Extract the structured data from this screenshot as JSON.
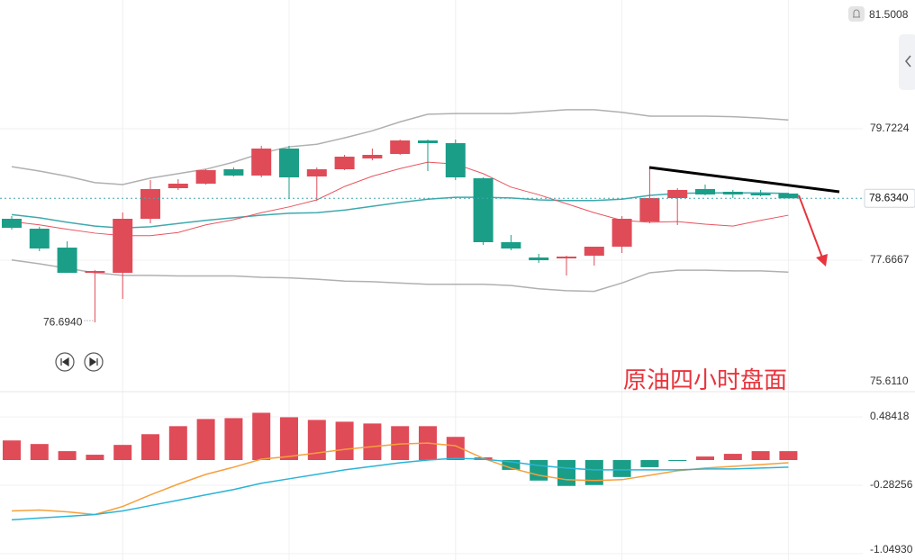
{
  "chart_data": [
    {
      "type": "candlestick",
      "open": [
        78.3143,
        78.1594,
        77.8637,
        77.4695,
        77.4695,
        78.3143,
        78.7931,
        78.8635,
        79.0887,
        78.9902,
        79.4126,
        78.9761,
        79.0887,
        79.2577,
        79.3281,
        79.5394,
        79.4971,
        78.9479,
        77.9482,
        77.7088,
        77.6947,
        77.737,
        77.8778,
        78.2721,
        78.6382,
        78.779,
        78.7368,
        78.7086,
        78.7086
      ],
      "high": [
        78.3566,
        78.19,
        77.9623,
        77.5117,
        78.4129,
        78.9198,
        78.9339,
        79.0887,
        79.1169,
        79.4549,
        79.4549,
        79.1169,
        79.314,
        79.4126,
        79.5534,
        79.5534,
        79.5534,
        78.962,
        78.0609,
        77.7652,
        77.737,
        77.8778,
        78.3566,
        79.1169,
        78.7931,
        78.8494,
        78.7649,
        78.7649,
        78.72
      ],
      "low": [
        78.1453,
        77.8074,
        77.4695,
        76.694,
        77.0612,
        78.2439,
        78.7649,
        78.8494,
        78.9761,
        78.962,
        78.6241,
        78.5959,
        79.0747,
        79.2295,
        79.314,
        79.0606,
        78.9198,
        77.906,
        77.8215,
        77.6244,
        77.4273,
        77.5821,
        77.7792,
        78.2439,
        78.2157,
        78.6804,
        78.6382,
        78.6664,
        78.634
      ],
      "close": [
        78.1735,
        77.8496,
        77.4695,
        77.4976,
        78.3143,
        78.779,
        78.8635,
        79.0747,
        78.9902,
        79.4126,
        78.962,
        79.0887,
        79.2859,
        79.314,
        79.5394,
        79.4971,
        78.962,
        77.9482,
        77.8496,
        77.6666,
        77.7229,
        77.8778,
        78.3143,
        78.6382,
        78.7649,
        78.6945,
        78.6945,
        78.6804,
        78.634
      ],
      "up_color": "#e04b58",
      "down_color": "#1b9e88",
      "overlays": [
        {
          "color": "#b0b0b0",
          "values": [
            79.13,
            79.06,
            78.98,
            78.88,
            78.85,
            78.95,
            79.02,
            79.09,
            79.2,
            79.34,
            79.44,
            79.48,
            79.58,
            79.69,
            79.83,
            79.95,
            79.96,
            79.96,
            79.96,
            79.99,
            80.02,
            80.02,
            79.98,
            79.92,
            79.92,
            79.92,
            79.91,
            79.89,
            79.86
          ]
        },
        {
          "color": "#3fa9ad",
          "values": [
            78.38,
            78.33,
            78.26,
            78.2,
            78.17,
            78.19,
            78.24,
            78.29,
            78.33,
            78.37,
            78.4,
            78.41,
            78.45,
            78.51,
            78.57,
            78.62,
            78.65,
            78.65,
            78.64,
            78.61,
            78.6,
            78.6,
            78.62,
            78.68,
            78.71,
            78.72,
            78.72,
            78.72,
            78.71
          ]
        },
        {
          "color": "#b0b0b0",
          "values": [
            77.67,
            77.61,
            77.54,
            77.47,
            77.43,
            77.43,
            77.42,
            77.42,
            77.42,
            77.4,
            77.39,
            77.37,
            77.34,
            77.33,
            77.31,
            77.29,
            77.29,
            77.29,
            77.27,
            77.22,
            77.19,
            77.18,
            77.31,
            77.47,
            77.51,
            77.51,
            77.5,
            77.5,
            77.48
          ]
        },
        {
          "color": "#e8555f",
          "values": [
            78.27,
            78.22,
            78.15,
            78.09,
            78.05,
            78.05,
            78.1,
            78.22,
            78.3,
            78.41,
            78.5,
            78.61,
            78.82,
            78.98,
            79.1,
            79.2,
            79.17,
            79.02,
            78.81,
            78.69,
            78.55,
            78.41,
            78.29,
            78.26,
            78.27,
            78.23,
            78.2,
            78.29,
            78.37
          ]
        }
      ],
      "ylim": [
        75.611,
        81.736
      ],
      "yticks": [
        79.7224,
        77.6667,
        {
          "value": 75.611,
          "label": "75.6110"
        }
      ],
      "last_price": {
        "value": 78.634,
        "label": "78.6340"
      },
      "alert_price": 81.5008,
      "low_mark": {
        "value": 76.694,
        "label": "76.6940",
        "index": 3
      },
      "annotation": "原油四小时盘面"
    },
    {
      "type": "macd",
      "histogram": [
        0.22,
        0.18,
        0.1,
        0.06,
        0.17,
        0.29,
        0.38,
        0.46,
        0.47,
        0.53,
        0.48,
        0.45,
        0.43,
        0.41,
        0.38,
        0.38,
        0.26,
        0.03,
        -0.11,
        -0.23,
        -0.29,
        -0.28,
        -0.19,
        -0.08,
        -0.01,
        0.04,
        0.07,
        0.1,
        0.1
      ],
      "positive_color": "#e04b58",
      "negative_color": "#1b9e88",
      "lines": [
        {
          "color": "#f5a03c",
          "values": [
            -0.57,
            -0.56,
            -0.58,
            -0.61,
            -0.52,
            -0.39,
            -0.27,
            -0.16,
            -0.08,
            0.01,
            0.04,
            0.08,
            0.12,
            0.15,
            0.18,
            0.19,
            0.16,
            0.02,
            -0.09,
            -0.17,
            -0.22,
            -0.23,
            -0.22,
            -0.17,
            -0.12,
            -0.09,
            -0.07,
            -0.05,
            -0.03
          ]
        },
        {
          "color": "#2ab4d8",
          "values": [
            -0.67,
            -0.65,
            -0.63,
            -0.61,
            -0.57,
            -0.51,
            -0.45,
            -0.39,
            -0.33,
            -0.26,
            -0.21,
            -0.16,
            -0.11,
            -0.07,
            -0.03,
            0,
            0.02,
            0.01,
            -0.02,
            -0.06,
            -0.09,
            -0.11,
            -0.11,
            -0.11,
            -0.11,
            -0.1,
            -0.1,
            -0.09,
            -0.08
          ]
        }
      ],
      "ylim": [
        -1.12,
        0.767
      ],
      "yticks": [
        0.48418,
        -0.28256,
        {
          "value": -1.0493,
          "label": "-1.04930"
        }
      ]
    }
  ]
}
